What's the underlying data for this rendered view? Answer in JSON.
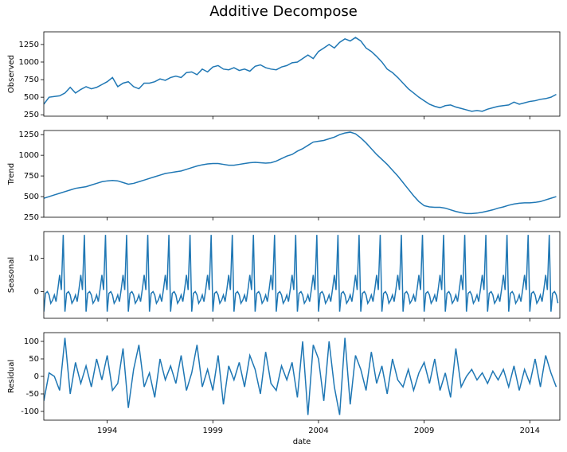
{
  "chart_data": [
    {
      "type": "line",
      "title": "Additive Decompose",
      "ylabel": "Observed",
      "color": "#1f77b4",
      "x": [
        1991,
        1991.25,
        1991.5,
        1991.75,
        1992,
        1992.25,
        1992.5,
        1992.75,
        1993,
        1993.25,
        1993.5,
        1993.75,
        1994,
        1994.25,
        1994.5,
        1994.75,
        1995,
        1995.25,
        1995.5,
        1995.75,
        1996,
        1996.25,
        1996.5,
        1996.75,
        1997,
        1997.25,
        1997.5,
        1997.75,
        1998,
        1998.25,
        1998.5,
        1998.75,
        1999,
        1999.25,
        1999.5,
        1999.75,
        2000,
        2000.25,
        2000.5,
        2000.75,
        2001,
        2001.25,
        2001.5,
        2001.75,
        2002,
        2002.25,
        2002.5,
        2002.75,
        2003,
        2003.25,
        2003.5,
        2003.75,
        2004,
        2004.25,
        2004.5,
        2004.75,
        2005,
        2005.25,
        2005.5,
        2005.75,
        2006,
        2006.25,
        2006.5,
        2006.75,
        2007,
        2007.25,
        2007.5,
        2007.75,
        2008,
        2008.25,
        2008.5,
        2008.75,
        2009,
        2009.25,
        2009.5,
        2009.75,
        2010,
        2010.25,
        2010.5,
        2010.75,
        2011,
        2011.25,
        2011.5,
        2011.75,
        2012,
        2012.25,
        2012.5,
        2012.75,
        2013,
        2013.25,
        2013.5,
        2013.75,
        2014,
        2014.25,
        2014.5,
        2014.75,
        2015,
        2015.25
      ],
      "values": [
        400,
        500,
        510,
        520,
        560,
        640,
        560,
        610,
        650,
        620,
        640,
        680,
        720,
        780,
        650,
        700,
        720,
        650,
        620,
        700,
        700,
        720,
        760,
        740,
        780,
        800,
        780,
        850,
        860,
        820,
        900,
        860,
        930,
        950,
        900,
        890,
        920,
        880,
        900,
        870,
        940,
        960,
        920,
        900,
        890,
        930,
        950,
        990,
        1000,
        1050,
        1100,
        1050,
        1150,
        1200,
        1250,
        1200,
        1280,
        1330,
        1300,
        1350,
        1300,
        1200,
        1150,
        1080,
        1000,
        900,
        850,
        780,
        700,
        620,
        560,
        500,
        450,
        400,
        370,
        350,
        380,
        390,
        360,
        340,
        320,
        300,
        310,
        300,
        330,
        350,
        370,
        380,
        390,
        430,
        400,
        420,
        440,
        450,
        470,
        480,
        500,
        540
      ],
      "xlim": [
        1991,
        2015.42
      ],
      "xticks": [
        1994,
        1999,
        2004,
        2009,
        2014
      ],
      "ylim": [
        230,
        1430
      ],
      "yticks": [
        250,
        500,
        750,
        1000,
        1250
      ]
    },
    {
      "type": "line",
      "ylabel": "Trend",
      "color": "#1f77b4",
      "x": [
        1991,
        1991.25,
        1991.5,
        1991.75,
        1992,
        1992.25,
        1992.5,
        1992.75,
        1993,
        1993.25,
        1993.5,
        1993.75,
        1994,
        1994.25,
        1994.5,
        1994.75,
        1995,
        1995.25,
        1995.5,
        1995.75,
        1996,
        1996.25,
        1996.5,
        1996.75,
        1997,
        1997.25,
        1997.5,
        1997.75,
        1998,
        1998.25,
        1998.5,
        1998.75,
        1999,
        1999.25,
        1999.5,
        1999.75,
        2000,
        2000.25,
        2000.5,
        2000.75,
        2001,
        2001.25,
        2001.5,
        2001.75,
        2002,
        2002.25,
        2002.5,
        2002.75,
        2003,
        2003.25,
        2003.5,
        2003.75,
        2004,
        2004.25,
        2004.5,
        2004.75,
        2005,
        2005.25,
        2005.5,
        2005.75,
        2006,
        2006.25,
        2006.5,
        2006.75,
        2007,
        2007.25,
        2007.5,
        2007.75,
        2008,
        2008.25,
        2008.5,
        2008.75,
        2009,
        2009.25,
        2009.5,
        2009.75,
        2010,
        2010.25,
        2010.5,
        2010.75,
        2011,
        2011.25,
        2011.5,
        2011.75,
        2012,
        2012.25,
        2012.5,
        2012.75,
        2013,
        2013.25,
        2013.5,
        2013.75,
        2014,
        2014.25,
        2014.5,
        2014.75,
        2015,
        2015.25
      ],
      "values": [
        480,
        500,
        520,
        540,
        560,
        580,
        600,
        610,
        620,
        640,
        660,
        680,
        690,
        695,
        690,
        670,
        650,
        660,
        680,
        700,
        720,
        740,
        760,
        780,
        790,
        800,
        810,
        830,
        850,
        870,
        885,
        895,
        900,
        900,
        890,
        880,
        880,
        890,
        900,
        910,
        915,
        910,
        905,
        910,
        930,
        960,
        990,
        1010,
        1050,
        1080,
        1120,
        1160,
        1170,
        1180,
        1200,
        1220,
        1250,
        1270,
        1280,
        1260,
        1210,
        1150,
        1080,
        1010,
        950,
        890,
        820,
        750,
        670,
        590,
        510,
        440,
        390,
        375,
        370,
        370,
        360,
        340,
        320,
        305,
        295,
        295,
        300,
        310,
        325,
        340,
        360,
        375,
        395,
        410,
        420,
        425,
        425,
        430,
        440,
        460,
        480,
        500
      ],
      "xlim": [
        1991,
        2015.42
      ],
      "xticks": [
        1994,
        1999,
        2004,
        2009,
        2014
      ],
      "ylim": [
        250,
        1300
      ],
      "yticks": [
        250,
        500,
        750,
        1000,
        1250
      ]
    },
    {
      "type": "line",
      "ylabel": "Seasonal",
      "color": "#1f77b4",
      "x": [
        1991,
        1991.08,
        1991.17,
        1991.25,
        1991.33,
        1991.42,
        1991.5,
        1991.58,
        1991.67,
        1991.75,
        1991.83,
        1991.92,
        1992,
        1992.08,
        1992.17,
        1992.25,
        1992.33,
        1992.42,
        1992.5,
        1992.58,
        1992.67,
        1992.75,
        1992.83,
        1992.92,
        1993,
        1993.08,
        1993.17,
        1993.25,
        1993.33,
        1993.42,
        1993.5,
        1993.58,
        1993.67,
        1993.75,
        1993.83,
        1993.92,
        1994,
        1994.08,
        1994.17,
        1994.25,
        1994.33,
        1994.42,
        1994.5,
        1994.58,
        1994.67,
        1994.75,
        1994.83,
        1994.92,
        1995,
        1995.08,
        1995.17,
        1995.25,
        1995.33,
        1995.42,
        1995.5,
        1995.58,
        1995.67,
        1995.75,
        1995.83,
        1995.92,
        1996,
        1996.08,
        1996.17,
        1996.25,
        1996.33,
        1996.42,
        1996.5,
        1996.58,
        1996.67,
        1996.75,
        1996.83,
        1996.92,
        1997,
        1997.08,
        1997.17,
        1997.25,
        1997.33,
        1997.42,
        1997.5,
        1997.58,
        1997.67,
        1997.75,
        1997.83,
        1997.92,
        1998,
        1998.08,
        1998.17,
        1998.25,
        1998.33,
        1998.42,
        1998.5,
        1998.58,
        1998.67,
        1998.75,
        1998.83,
        1998.92,
        1999,
        1999.08,
        1999.17,
        1999.25,
        1999.33,
        1999.42,
        1999.5,
        1999.58,
        1999.67,
        1999.75,
        1999.83,
        1999.92,
        2000,
        2000.08,
        2000.17,
        2000.25,
        2000.33,
        2000.42,
        2000.5,
        2000.58,
        2000.67,
        2000.75,
        2000.83,
        2000.92,
        2001,
        2001.08,
        2001.17,
        2001.25,
        2001.33,
        2001.42,
        2001.5,
        2001.58,
        2001.67,
        2001.75,
        2001.83,
        2001.92,
        2002,
        2002.08,
        2002.17,
        2002.25,
        2002.33,
        2002.42,
        2002.5,
        2002.58,
        2002.67,
        2002.75,
        2002.83,
        2002.92,
        2003,
        2003.08,
        2003.17,
        2003.25,
        2003.33,
        2003.42,
        2003.5,
        2003.58,
        2003.67,
        2003.75,
        2003.83,
        2003.92,
        2004,
        2004.08,
        2004.17,
        2004.25,
        2004.33,
        2004.42,
        2004.5,
        2004.58,
        2004.67,
        2004.75,
        2004.83,
        2004.92,
        2005,
        2005.08,
        2005.17,
        2005.25,
        2005.33,
        2005.42,
        2005.5,
        2005.58,
        2005.67,
        2005.75,
        2005.83,
        2005.92,
        2006,
        2006.08,
        2006.17,
        2006.25,
        2006.33,
        2006.42,
        2006.5,
        2006.58,
        2006.67,
        2006.75,
        2006.83,
        2006.92,
        2007,
        2007.08,
        2007.17,
        2007.25,
        2007.33,
        2007.42,
        2007.5,
        2007.58,
        2007.67,
        2007.75,
        2007.83,
        2007.92,
        2008,
        2008.08,
        2008.17,
        2008.25,
        2008.33,
        2008.42,
        2008.5,
        2008.58,
        2008.67,
        2008.75,
        2008.83,
        2008.92,
        2009,
        2009.08,
        2009.17,
        2009.25,
        2009.33,
        2009.42,
        2009.5,
        2009.58,
        2009.67,
        2009.75,
        2009.83,
        2009.92,
        2010,
        2010.08,
        2010.17,
        2010.25,
        2010.33,
        2010.42,
        2010.5,
        2010.58,
        2010.67,
        2010.75,
        2010.83,
        2010.92,
        2011,
        2011.08,
        2011.17,
        2011.25,
        2011.33,
        2011.42,
        2011.5,
        2011.58,
        2011.67,
        2011.75,
        2011.83,
        2011.92,
        2012,
        2012.08,
        2012.17,
        2012.25,
        2012.33,
        2012.42,
        2012.5,
        2012.58,
        2012.67,
        2012.75,
        2012.83,
        2012.92,
        2013,
        2013.08,
        2013.17,
        2013.25,
        2013.33,
        2013.42,
        2013.5,
        2013.58,
        2013.67,
        2013.75,
        2013.83,
        2013.92,
        2014,
        2014.08,
        2014.17,
        2014.25,
        2014.33,
        2014.42,
        2014.5,
        2014.58,
        2014.67,
        2014.75,
        2014.83,
        2014.92,
        2015,
        2015.08,
        2015.17,
        2015.25,
        2015.33
      ],
      "values": [
        -6,
        -0.5,
        0,
        -1,
        -3.5,
        -2.5,
        -1,
        -3,
        1,
        5,
        0.5,
        17,
        -6,
        -0.5,
        0,
        -1,
        -3.5,
        -2.5,
        -1,
        -3,
        1,
        5,
        0.5,
        17,
        -6,
        -0.5,
        0,
        -1,
        -3.5,
        -2.5,
        -1,
        -3,
        1,
        5,
        0.5,
        17,
        -6,
        -0.5,
        0,
        -1,
        -3.5,
        -2.5,
        -1,
        -3,
        1,
        5,
        0.5,
        17,
        -6,
        -0.5,
        0,
        -1,
        -3.5,
        -2.5,
        -1,
        -3,
        1,
        5,
        0.5,
        17,
        -6,
        -0.5,
        0,
        -1,
        -3.5,
        -2.5,
        -1,
        -3,
        1,
        5,
        0.5,
        17,
        -6,
        -0.5,
        0,
        -1,
        -3.5,
        -2.5,
        -1,
        -3,
        1,
        5,
        0.5,
        17,
        -6,
        -0.5,
        0,
        -1,
        -3.5,
        -2.5,
        -1,
        -3,
        1,
        5,
        0.5,
        17,
        -6,
        -0.5,
        0,
        -1,
        -3.5,
        -2.5,
        -1,
        -3,
        1,
        5,
        0.5,
        17,
        -6,
        -0.5,
        0,
        -1,
        -3.5,
        -2.5,
        -1,
        -3,
        1,
        5,
        0.5,
        17,
        -6,
        -0.5,
        0,
        -1,
        -3.5,
        -2.5,
        -1,
        -3,
        1,
        5,
        0.5,
        17,
        -6,
        -0.5,
        0,
        -1,
        -3.5,
        -2.5,
        -1,
        -3,
        1,
        5,
        0.5,
        17,
        -6,
        -0.5,
        0,
        -1,
        -3.5,
        -2.5,
        -1,
        -3,
        1,
        5,
        0.5,
        17,
        -6,
        -0.5,
        0,
        -1,
        -3.5,
        -2.5,
        -1,
        -3,
        1,
        5,
        0.5,
        17,
        -6,
        -0.5,
        0,
        -1,
        -3.5,
        -2.5,
        -1,
        -3,
        1,
        5,
        0.5,
        17,
        -6,
        -0.5,
        0,
        -1,
        -3.5,
        -2.5,
        -1,
        -3,
        1,
        5,
        0.5,
        17,
        -6,
        -0.5,
        0,
        -1,
        -3.5,
        -2.5,
        -1,
        -3,
        1,
        5,
        0.5,
        17,
        -6,
        -0.5,
        0,
        -1,
        -3.5,
        -2.5,
        -1,
        -3,
        1,
        5,
        0.5,
        17,
        -6,
        -0.5,
        0,
        -1,
        -3.5,
        -2.5,
        -1,
        -3,
        1,
        5,
        0.5,
        17,
        -6,
        -0.5,
        0,
        -1,
        -3.5,
        -2.5,
        -1,
        -3,
        1,
        5,
        0.5,
        17,
        -6,
        -0.5,
        0,
        -1,
        -3.5,
        -2.5,
        -1,
        -3,
        1,
        5,
        0.5,
        17,
        -6,
        -0.5,
        0,
        -1,
        -3.5,
        -2.5,
        -1,
        -3,
        1,
        5,
        0.5,
        17,
        -6,
        -0.5,
        0,
        -1,
        -3.5,
        -2.5,
        -1,
        -3,
        1,
        5,
        0.5,
        17,
        -6,
        -0.5,
        0,
        -1,
        -3.5,
        -2.5,
        -1,
        -3,
        1,
        5,
        0.5,
        17,
        -6,
        -0.5,
        0,
        -1,
        -3.5
      ],
      "xlim": [
        1991,
        2015.42
      ],
      "xticks": [
        1994,
        1999,
        2004,
        2009,
        2014
      ],
      "ylim": [
        -8,
        18
      ],
      "yticks": [
        0,
        10
      ]
    },
    {
      "type": "line",
      "ylabel": "Residual",
      "xlabel": "date",
      "color": "#1f77b4",
      "x": [
        1991,
        1991.25,
        1991.5,
        1991.75,
        1992,
        1992.25,
        1992.5,
        1992.75,
        1993,
        1993.25,
        1993.5,
        1993.75,
        1994,
        1994.25,
        1994.5,
        1994.75,
        1995,
        1995.25,
        1995.5,
        1995.75,
        1996,
        1996.25,
        1996.5,
        1996.75,
        1997,
        1997.25,
        1997.5,
        1997.75,
        1998,
        1998.25,
        1998.5,
        1998.75,
        1999,
        1999.25,
        1999.5,
        1999.75,
        2000,
        2000.25,
        2000.5,
        2000.75,
        2001,
        2001.25,
        2001.5,
        2001.75,
        2002,
        2002.25,
        2002.5,
        2002.75,
        2003,
        2003.25,
        2003.5,
        2003.75,
        2004,
        2004.25,
        2004.5,
        2004.75,
        2005,
        2005.25,
        2005.5,
        2005.75,
        2006,
        2006.25,
        2006.5,
        2006.75,
        2007,
        2007.25,
        2007.5,
        2007.75,
        2008,
        2008.25,
        2008.5,
        2008.75,
        2009,
        2009.25,
        2009.5,
        2009.75,
        2010,
        2010.25,
        2010.5,
        2010.75,
        2011,
        2011.25,
        2011.5,
        2011.75,
        2012,
        2012.25,
        2012.5,
        2012.75,
        2013,
        2013.25,
        2013.5,
        2013.75,
        2014,
        2014.25,
        2014.5,
        2014.75,
        2015,
        2015.25
      ],
      "values": [
        -70,
        10,
        0,
        -40,
        110,
        -50,
        40,
        -20,
        30,
        -30,
        50,
        -10,
        60,
        -40,
        -20,
        80,
        -90,
        20,
        90,
        -30,
        10,
        -60,
        50,
        -10,
        30,
        -20,
        60,
        -40,
        10,
        90,
        -30,
        20,
        -40,
        60,
        -80,
        30,
        -10,
        40,
        -30,
        60,
        20,
        -50,
        70,
        -20,
        -40,
        30,
        -10,
        40,
        -60,
        100,
        -110,
        90,
        50,
        -70,
        100,
        -30,
        -110,
        110,
        -80,
        60,
        20,
        -40,
        70,
        -20,
        30,
        -50,
        50,
        -10,
        -30,
        20,
        -40,
        10,
        40,
        -20,
        50,
        -40,
        10,
        -60,
        80,
        -30,
        0,
        20,
        -10,
        10,
        -20,
        15,
        -10,
        20,
        -30,
        30,
        -40,
        20,
        -20,
        50,
        -30,
        60,
        10,
        -30
      ],
      "xlim": [
        1991,
        2015.42
      ],
      "xticks": [
        1994,
        1999,
        2004,
        2009,
        2014
      ],
      "ylim": [
        -125,
        125
      ],
      "yticks": [
        -100,
        -50,
        0,
        50,
        100
      ]
    }
  ]
}
